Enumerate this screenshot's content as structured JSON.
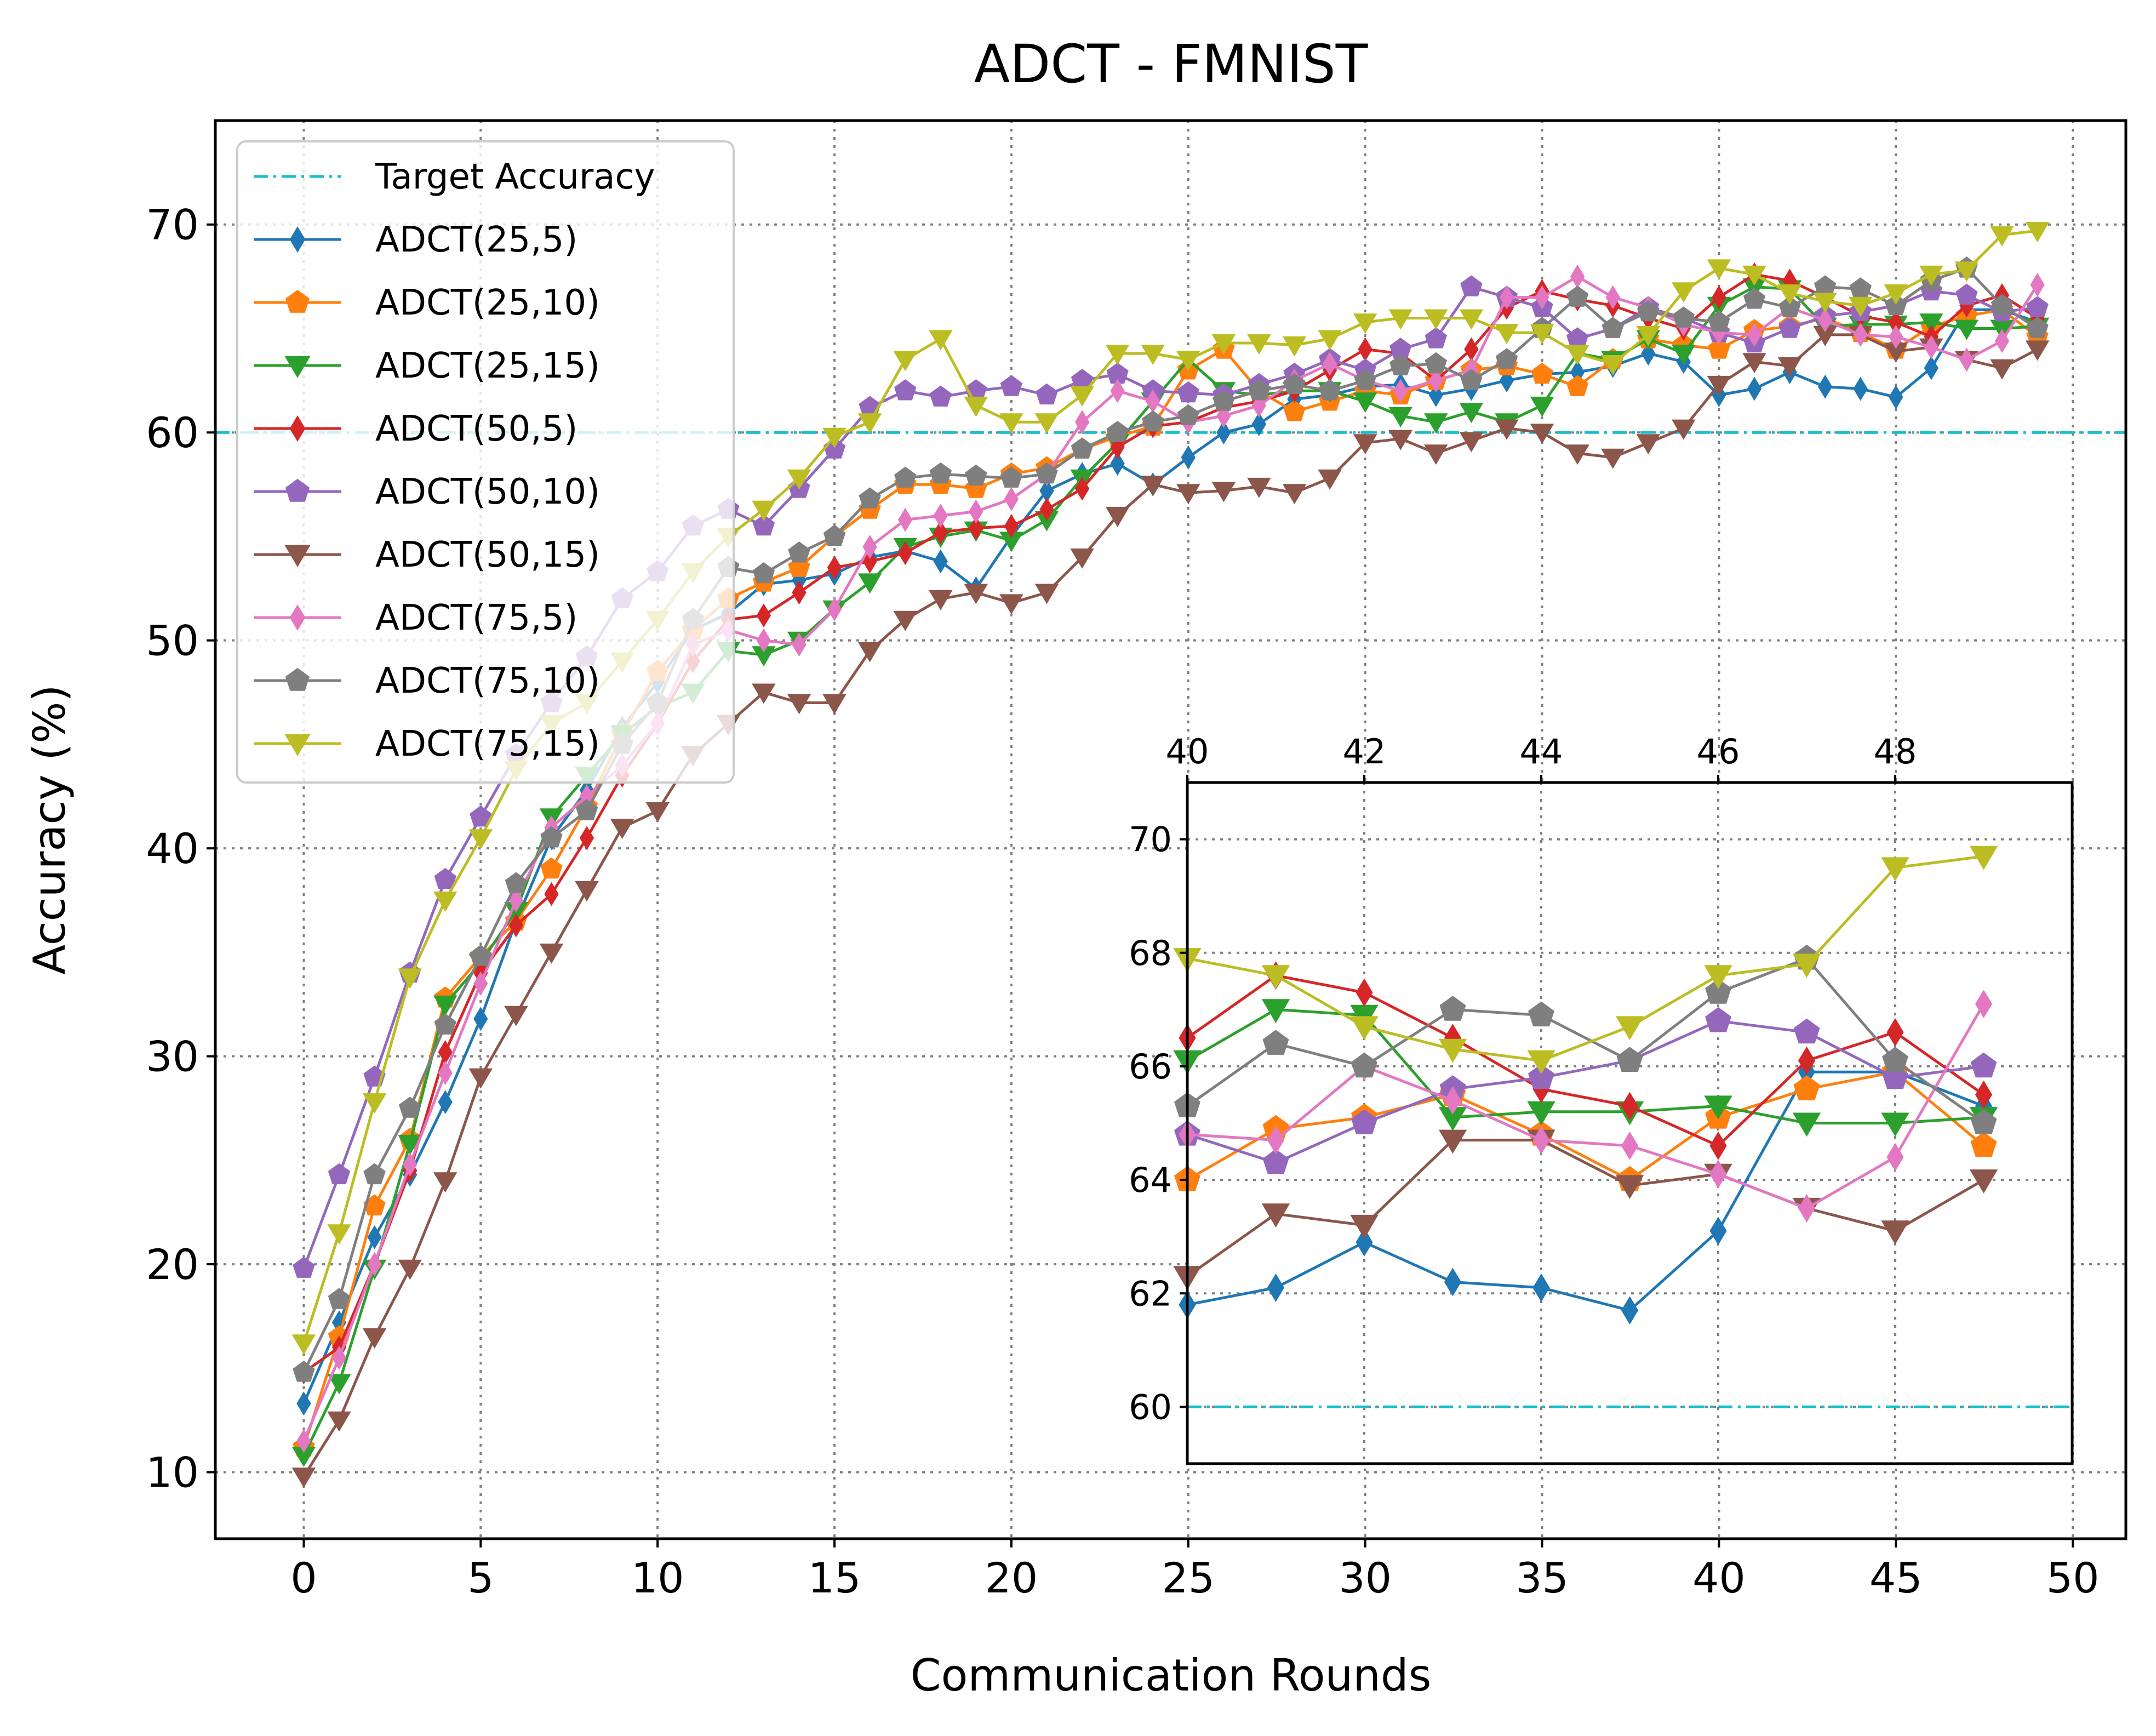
{
  "chart_data": {
    "type": "line",
    "title": "ADCT - FMNIST",
    "xlabel": "Communication Rounds",
    "ylabel": "Accuracy (%)",
    "xlim": [
      -2.5,
      51.5
    ],
    "ylim": [
      6.8,
      75.0
    ],
    "xticks": [
      0,
      5,
      10,
      15,
      20,
      25,
      30,
      35,
      40,
      45,
      50
    ],
    "yticks": [
      10,
      20,
      30,
      40,
      50,
      60,
      70
    ],
    "grid": true,
    "legend_position": "top-left",
    "target": {
      "name": "Target Accuracy",
      "value": 60,
      "color": "#17becf"
    },
    "x": [
      0,
      1,
      2,
      3,
      4,
      5,
      6,
      7,
      8,
      9,
      10,
      11,
      12,
      13,
      14,
      15,
      16,
      17,
      18,
      19,
      20,
      21,
      22,
      23,
      24,
      25,
      26,
      27,
      28,
      29,
      30,
      31,
      32,
      33,
      34,
      35,
      36,
      37,
      38,
      39,
      40,
      41,
      42,
      43,
      44,
      45,
      46,
      47,
      48,
      49
    ],
    "series": [
      {
        "name": "ADCT(25,5)",
        "color": "#1f77b4",
        "marker": "thin_diamond",
        "values": [
          13.3,
          17.2,
          21.3,
          24.3,
          27.8,
          31.8,
          36.5,
          40.5,
          42.8,
          45.8,
          48.0,
          50.5,
          51.3,
          52.7,
          52.9,
          53.2,
          54.0,
          54.3,
          53.8,
          52.5,
          55.0,
          57.2,
          58.0,
          58.5,
          57.5,
          58.8,
          60.0,
          60.4,
          61.6,
          61.8,
          62.2,
          62.3,
          61.8,
          62.1,
          62.5,
          62.8,
          62.9,
          63.2,
          63.8,
          63.4,
          61.8,
          62.1,
          62.9,
          62.2,
          62.1,
          61.7,
          63.1,
          65.9,
          65.9,
          65.3
        ]
      },
      {
        "name": "ADCT(25,10)",
        "color": "#ff7f0e",
        "marker": "pentagon",
        "values": [
          11.2,
          16.5,
          22.8,
          26.0,
          32.8,
          34.8,
          36.5,
          39.0,
          42.0,
          45.5,
          48.5,
          50.5,
          52.0,
          52.8,
          53.5,
          55.0,
          56.3,
          57.5,
          57.5,
          57.3,
          58.0,
          58.3,
          59.2,
          59.8,
          60.3,
          63.0,
          64.0,
          62.0,
          61.0,
          61.5,
          62.0,
          61.8,
          62.5,
          63.0,
          63.2,
          62.8,
          62.2,
          63.5,
          64.5,
          64.2,
          64.0,
          64.9,
          65.1,
          65.5,
          64.8,
          64.0,
          65.1,
          65.6,
          65.9,
          64.6
        ]
      },
      {
        "name": "ADCT(25,15)",
        "color": "#2ca02c",
        "marker": "triangle_down",
        "values": [
          10.8,
          14.3,
          19.8,
          25.8,
          32.5,
          34.5,
          37.0,
          41.5,
          43.5,
          45.5,
          46.8,
          47.5,
          49.5,
          49.3,
          50.0,
          51.5,
          52.8,
          54.5,
          55.0,
          55.3,
          54.8,
          55.8,
          57.8,
          59.5,
          61.5,
          63.5,
          62.0,
          61.8,
          62.0,
          62.0,
          61.5,
          60.8,
          60.5,
          61.0,
          60.5,
          61.3,
          63.8,
          63.5,
          64.5,
          63.8,
          66.1,
          67.0,
          66.9,
          65.1,
          65.2,
          65.2,
          65.3,
          65.0,
          65.0,
          65.1
        ]
      },
      {
        "name": "ADCT(50,5)",
        "color": "#d62728",
        "marker": "thin_diamond",
        "values": [
          14.8,
          16.0,
          20.0,
          24.5,
          30.2,
          34.0,
          36.3,
          37.8,
          40.5,
          43.5,
          46.0,
          49.0,
          51.0,
          51.2,
          52.3,
          53.5,
          53.8,
          54.2,
          55.2,
          55.4,
          55.5,
          56.3,
          57.3,
          59.3,
          60.3,
          60.5,
          61.2,
          61.5,
          62.0,
          63.0,
          64.0,
          63.8,
          62.5,
          64.0,
          66.0,
          66.8,
          66.4,
          66.1,
          65.5,
          65.0,
          66.5,
          67.6,
          67.3,
          66.5,
          65.6,
          65.3,
          64.6,
          66.1,
          66.6,
          65.5
        ]
      },
      {
        "name": "ADCT(50,10)",
        "color": "#9467bd",
        "marker": "pentagon",
        "values": [
          19.8,
          24.3,
          29.0,
          34.0,
          38.5,
          41.5,
          44.5,
          47.0,
          49.2,
          52.0,
          53.3,
          55.5,
          56.3,
          55.5,
          57.3,
          59.2,
          61.2,
          62.0,
          61.7,
          62.0,
          62.2,
          61.8,
          62.5,
          62.8,
          62.0,
          61.9,
          61.8,
          62.3,
          62.8,
          63.5,
          63.0,
          64.0,
          64.5,
          67.0,
          66.5,
          66.0,
          64.5,
          65.0,
          66.0,
          65.5,
          64.8,
          64.3,
          65.0,
          65.6,
          65.8,
          66.1,
          66.8,
          66.6,
          65.8,
          66.0
        ]
      },
      {
        "name": "ADCT(50,15)",
        "color": "#8c564b",
        "marker": "triangle_down",
        "values": [
          9.8,
          12.5,
          16.5,
          19.8,
          24.0,
          29.0,
          32.0,
          35.0,
          38.0,
          41.0,
          41.8,
          44.5,
          46.0,
          47.5,
          47.0,
          47.0,
          49.5,
          51.0,
          52.0,
          52.3,
          51.8,
          52.3,
          54.0,
          56.0,
          57.5,
          57.1,
          57.2,
          57.4,
          57.1,
          57.8,
          59.5,
          59.7,
          59.0,
          59.6,
          60.2,
          60.0,
          59.0,
          58.8,
          59.5,
          60.2,
          62.3,
          63.4,
          63.2,
          64.7,
          64.7,
          63.9,
          64.1,
          63.5,
          63.1,
          64.0
        ]
      },
      {
        "name": "ADCT(75,5)",
        "color": "#e377c2",
        "marker": "thin_diamond",
        "values": [
          11.5,
          15.5,
          20.0,
          24.8,
          29.2,
          33.5,
          37.5,
          41.0,
          42.5,
          44.0,
          46.0,
          49.8,
          50.5,
          50.0,
          49.8,
          51.5,
          54.5,
          55.8,
          56.0,
          56.2,
          56.8,
          58.0,
          60.5,
          62.0,
          61.5,
          60.5,
          60.8,
          61.3,
          62.5,
          63.3,
          62.5,
          62.0,
          62.5,
          63.0,
          66.5,
          66.5,
          67.5,
          66.5,
          66.0,
          65.2,
          64.8,
          64.7,
          66.0,
          65.4,
          64.7,
          64.6,
          64.1,
          63.5,
          64.4,
          67.1
        ]
      },
      {
        "name": "ADCT(75,10)",
        "color": "#7f7f7f",
        "marker": "pentagon",
        "values": [
          14.8,
          18.3,
          24.3,
          27.5,
          31.5,
          34.8,
          38.3,
          40.5,
          41.8,
          45.0,
          47.0,
          51.0,
          53.5,
          53.2,
          54.2,
          55.0,
          56.8,
          57.8,
          58.0,
          57.9,
          57.8,
          58.0,
          59.2,
          60.0,
          60.5,
          60.8,
          61.5,
          62.0,
          62.3,
          62.0,
          62.5,
          63.2,
          63.3,
          62.5,
          63.5,
          65.0,
          66.5,
          65.0,
          65.8,
          65.5,
          65.3,
          66.4,
          66.0,
          67.0,
          66.9,
          66.1,
          67.3,
          67.9,
          66.1,
          65.0
        ]
      },
      {
        "name": "ADCT(75,15)",
        "color": "#bcbd22",
        "marker": "triangle_down",
        "values": [
          16.2,
          21.5,
          27.8,
          33.8,
          37.5,
          40.5,
          43.8,
          46.0,
          47.0,
          49.0,
          51.0,
          53.3,
          55.0,
          56.3,
          57.8,
          59.8,
          60.5,
          63.5,
          64.5,
          61.3,
          60.5,
          60.5,
          61.8,
          63.8,
          63.8,
          63.5,
          64.3,
          64.3,
          64.2,
          64.5,
          65.3,
          65.5,
          65.5,
          65.5,
          64.8,
          64.8,
          63.8,
          63.3,
          64.7,
          66.8,
          67.9,
          67.6,
          66.7,
          66.3,
          66.1,
          66.7,
          67.6,
          67.8,
          69.5,
          69.7
        ]
      }
    ],
    "inset": {
      "xlim": [
        40,
        50
      ],
      "ylim": [
        59,
        71
      ],
      "xticks": [
        40,
        42,
        44,
        46,
        48
      ],
      "yticks": [
        60,
        62,
        64,
        66,
        68,
        70
      ],
      "x": [
        40,
        41,
        42,
        43,
        44,
        45,
        46,
        47,
        48,
        49
      ],
      "grid": true,
      "tick_side": "top"
    }
  }
}
